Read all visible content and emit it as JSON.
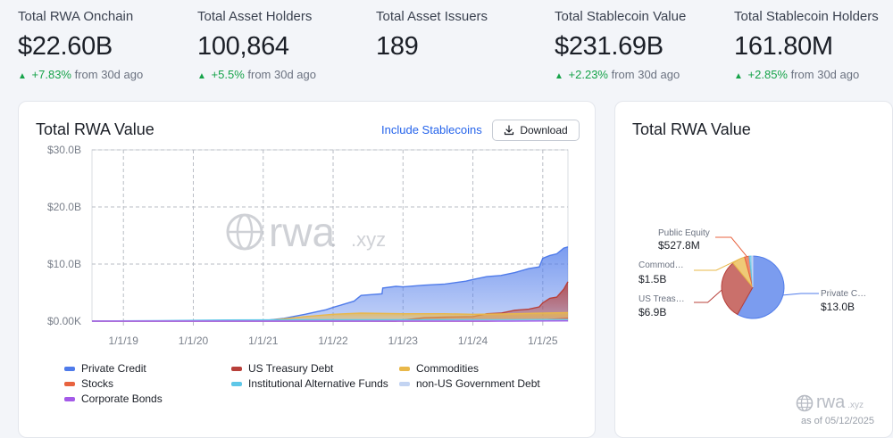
{
  "stats": [
    {
      "label": "Total RWA Onchain",
      "value": "$22.60B",
      "change": "+7.83%",
      "suffix": "from 30d ago"
    },
    {
      "label": "Total Asset Holders",
      "value": "100,864",
      "change": "+5.5%",
      "suffix": "from 30d ago"
    },
    {
      "label": "Total Asset Issuers",
      "value": "189",
      "change": "",
      "suffix": ""
    },
    {
      "label": "Total Stablecoin Value",
      "value": "$231.69B",
      "change": "+2.23%",
      "suffix": "from 30d ago"
    },
    {
      "label": "Total Stablecoin Holders",
      "value": "161.80M",
      "change": "+2.85%",
      "suffix": "from 30d ago"
    }
  ],
  "main_card": {
    "title": "Total RWA Value",
    "include_stablecoins": "Include Stablecoins",
    "download_label": "Download"
  },
  "side_card": {
    "title": "Total RWA Value",
    "logo": "rwa",
    "logo_ext": ".xyz",
    "as_of": "as of 05/12/2025"
  },
  "watermark": {
    "text": "rwa",
    "ext": ".xyz"
  },
  "colors": {
    "private_credit": "#4f7bea",
    "us_treasury": "#b8403a",
    "commodities": "#e9b84a",
    "stocks": "#e8633f",
    "inst_alt_funds": "#5ec7e8",
    "non_us_gov": "#c3d4f2",
    "corporate_bonds": "#a45ae8",
    "positive": "#17a34a"
  },
  "chart_data": [
    {
      "type": "area",
      "title": "Total RWA Value",
      "xlabel": "",
      "ylabel": "",
      "x_ticks": [
        "1/1/19",
        "1/1/20",
        "1/1/21",
        "1/1/22",
        "1/1/23",
        "1/1/24",
        "1/1/25"
      ],
      "y_ticks": [
        "$0.00K",
        "$10.0B",
        "$20.0B",
        "$30.0B"
      ],
      "ylim": [
        0,
        30
      ],
      "xlim": [
        2018.55,
        2025.36
      ],
      "grid": true,
      "stacked": true,
      "series": [
        {
          "name": "Private Credit",
          "color_key": "private_credit",
          "points": [
            [
              2018.55,
              0
            ],
            [
              2019.5,
              0
            ],
            [
              2020.5,
              0.05
            ],
            [
              2021.0,
              0.1
            ],
            [
              2021.3,
              0.5
            ],
            [
              2021.6,
              1.2
            ],
            [
              2021.9,
              2.0
            ],
            [
              2022.0,
              2.4
            ],
            [
              2022.3,
              3.5
            ],
            [
              2022.4,
              4.5
            ],
            [
              2022.7,
              4.8
            ],
            [
              2022.71,
              5.8
            ],
            [
              2022.9,
              6.1
            ],
            [
              2023.0,
              6.0
            ],
            [
              2023.3,
              6.3
            ],
            [
              2023.6,
              6.5
            ],
            [
              2023.9,
              7.0
            ],
            [
              2024.0,
              7.3
            ],
            [
              2024.2,
              7.8
            ],
            [
              2024.4,
              8.0
            ],
            [
              2024.6,
              8.5
            ],
            [
              2024.8,
              9.2
            ],
            [
              2024.95,
              9.5
            ],
            [
              2025.0,
              11.0
            ],
            [
              2025.1,
              11.5
            ],
            [
              2025.2,
              11.8
            ],
            [
              2025.3,
              12.8
            ],
            [
              2025.36,
              13.0
            ]
          ]
        },
        {
          "name": "US Treasury Debt",
          "color_key": "us_treasury",
          "points": [
            [
              2018.55,
              0
            ],
            [
              2022.9,
              0
            ],
            [
              2023.0,
              0.2
            ],
            [
              2023.3,
              0.6
            ],
            [
              2023.6,
              0.7
            ],
            [
              2024.0,
              0.8
            ],
            [
              2024.2,
              1.3
            ],
            [
              2024.4,
              1.4
            ],
            [
              2024.6,
              1.9
            ],
            [
              2024.8,
              2.1
            ],
            [
              2024.95,
              2.5
            ],
            [
              2025.0,
              3.2
            ],
            [
              2025.1,
              4.0
            ],
            [
              2025.2,
              4.2
            ],
            [
              2025.3,
              5.6
            ],
            [
              2025.36,
              6.9
            ]
          ]
        },
        {
          "name": "Commodities",
          "color_key": "commodities",
          "points": [
            [
              2018.55,
              0
            ],
            [
              2020.8,
              0
            ],
            [
              2021.0,
              0.1
            ],
            [
              2021.3,
              0.4
            ],
            [
              2021.6,
              0.8
            ],
            [
              2022.0,
              1.2
            ],
            [
              2022.4,
              1.4
            ],
            [
              2023.0,
              1.3
            ],
            [
              2023.6,
              1.3
            ],
            [
              2024.0,
              1.2
            ],
            [
              2024.6,
              1.3
            ],
            [
              2025.0,
              1.4
            ],
            [
              2025.36,
              1.5
            ]
          ]
        },
        {
          "name": "Stocks",
          "color_key": "stocks",
          "points": [
            [
              2018.55,
              0
            ],
            [
              2024.2,
              0
            ],
            [
              2024.6,
              0.1
            ],
            [
              2025.0,
              0.25
            ],
            [
              2025.36,
              0.5
            ]
          ]
        },
        {
          "name": "Institutional Alternative Funds",
          "color_key": "inst_alt_funds",
          "points": [
            [
              2018.55,
              0
            ],
            [
              2018.9,
              0.05
            ],
            [
              2019.5,
              0.1
            ],
            [
              2020.5,
              0.2
            ],
            [
              2021.5,
              0.25
            ],
            [
              2022.5,
              0.25
            ],
            [
              2023.5,
              0.25
            ],
            [
              2024.5,
              0.25
            ],
            [
              2025.36,
              0.3
            ]
          ]
        },
        {
          "name": "non-US Government Debt",
          "color_key": "non_us_gov",
          "points": [
            [
              2018.55,
              0
            ],
            [
              2022.5,
              0
            ],
            [
              2023.5,
              0.05
            ],
            [
              2024.5,
              0.1
            ],
            [
              2025.36,
              0.1
            ]
          ]
        },
        {
          "name": "Corporate Bonds",
          "color_key": "corporate_bonds",
          "points": [
            [
              2018.55,
              0
            ],
            [
              2024.5,
              0
            ],
            [
              2025.36,
              0.05
            ]
          ]
        }
      ]
    },
    {
      "type": "pie",
      "title": "Total RWA Value",
      "slices": [
        {
          "name": "Private C…",
          "label": "$13.0B",
          "value": 13.0,
          "color_key": "private_credit"
        },
        {
          "name": "US Treas…",
          "label": "$6.9B",
          "value": 6.9,
          "color_key": "us_treasury"
        },
        {
          "name": "Commod…",
          "label": "$1.5B",
          "value": 1.5,
          "color_key": "commodities"
        },
        {
          "name": "Public Equity",
          "label": "$527.8M",
          "value": 0.5278,
          "color_key": "stocks"
        },
        {
          "name": "",
          "label": "",
          "value": 0.3,
          "color_key": "inst_alt_funds"
        },
        {
          "name": "",
          "label": "",
          "value": 0.12,
          "color_key": "non_us_gov"
        }
      ]
    }
  ]
}
